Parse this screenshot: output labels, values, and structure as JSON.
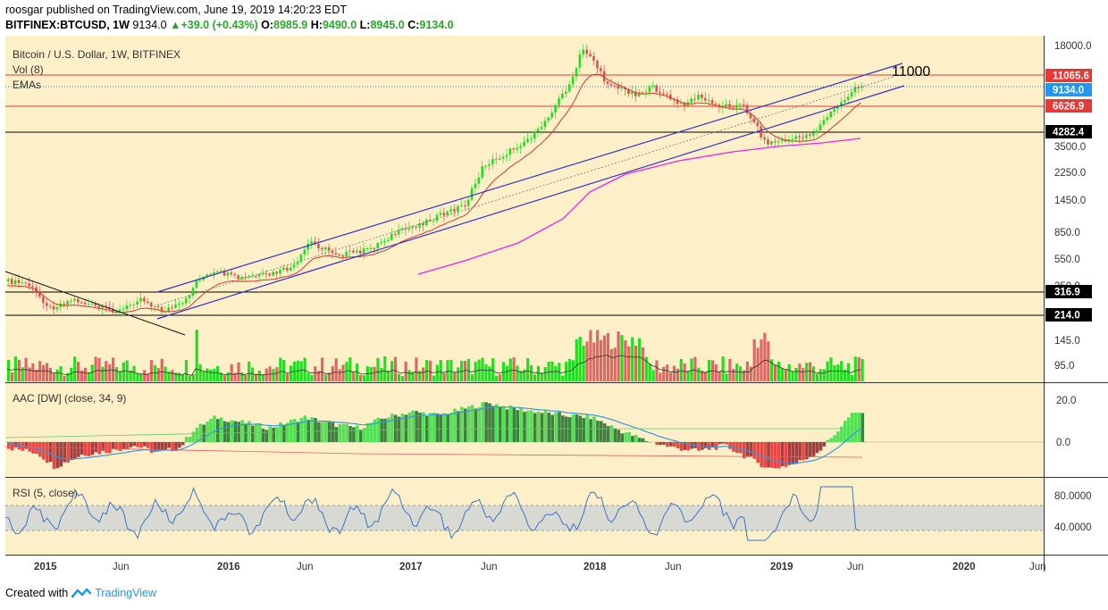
{
  "header": {
    "author": "roosgar",
    "published_text": "published on TradingView.com, June 19, 2019 14:20:23 EDT",
    "symbol": "BITFINEX:BTCUSD, 1W",
    "last": "9134.0",
    "change": "+39.0 (+0.43%)",
    "o_label": "O:",
    "o_value": "8985.9",
    "h_label": "H:",
    "h_value": "9490.0",
    "l_label": "L:",
    "l_value": "8945.0",
    "c_label": "C:",
    "c_value": "9134.0"
  },
  "main_pane": {
    "title": "Bitcoin / U.S. Dollar, 1W, BITFINEX",
    "vol_label": "Vol (8)",
    "emas_label": "EMAs",
    "annotation": "11000",
    "price_ticks": [
      "18000.0",
      "2250.0",
      "1450.0",
      "850.0",
      "550.0",
      "350.0",
      "145.0",
      "95.0"
    ],
    "level_3500": "3500.0",
    "badges": {
      "b11065": "11065.6",
      "b9134": "9134.0",
      "b6626": "6626.9",
      "b4282": "4282.4",
      "b316": "316.9",
      "b214": "214.0"
    }
  },
  "aac_pane": {
    "title": "AAC [DW] (close, 34, 9)",
    "ticks": [
      "20.0",
      "0.0"
    ]
  },
  "rsi_pane": {
    "title": "RSI (5, close)",
    "ticks": [
      "80.0000",
      "40.0000"
    ]
  },
  "time_axis": [
    "2015",
    "Jun",
    "2016",
    "Jun",
    "2017",
    "Jun",
    "2018",
    "Jun",
    "2019",
    "Jun",
    "2020",
    "Jun"
  ],
  "footer": {
    "created_with": "Created with",
    "brand": "TradingView"
  },
  "colors": {
    "background": "#fdf0c8",
    "up": "#22dd22",
    "down": "#e05050",
    "channel": "#3333cc",
    "ema_long": "#ee22ee",
    "rsi": "#3a76c4",
    "badge_red": "#e53935",
    "badge_blue": "#2196f3",
    "badge_black": "#000000"
  }
}
